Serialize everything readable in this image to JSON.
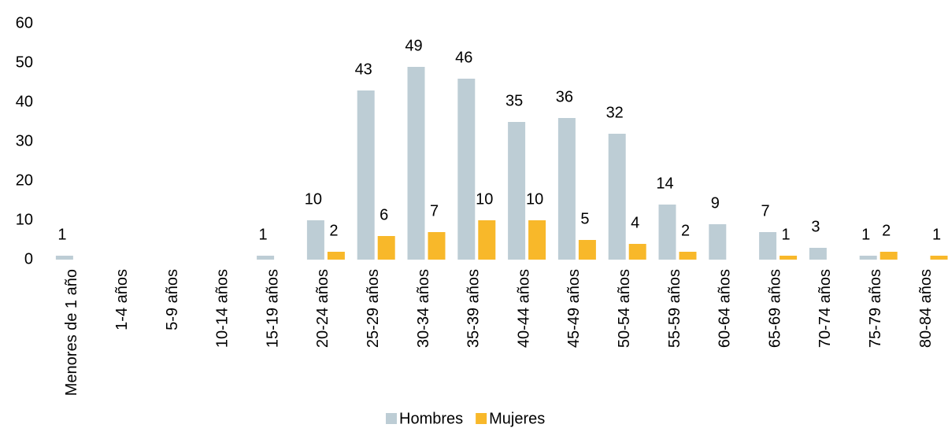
{
  "chart_data": {
    "type": "bar",
    "categories": [
      "Menores de 1 año",
      "1-4 años",
      "5-9 años",
      "10-14 años",
      "15-19 años",
      "20-24 años",
      "25-29 años",
      "30-34 años",
      "35-39 años",
      "40-44 años",
      "45-49 años",
      "50-54 años",
      "55-59 años",
      "60-64 años",
      "65-69 años",
      "70-74 años",
      "75-79 años",
      "80-84 años"
    ],
    "series": [
      {
        "name": "Hombres",
        "color": "#bdcdd5",
        "values": [
          1,
          null,
          null,
          null,
          1,
          10,
          43,
          49,
          46,
          35,
          36,
          32,
          14,
          9,
          7,
          3,
          1,
          null
        ]
      },
      {
        "name": "Mujeres",
        "color": "#f8b82a",
        "values": [
          null,
          null,
          null,
          null,
          null,
          2,
          6,
          7,
          10,
          10,
          5,
          4,
          2,
          null,
          1,
          null,
          2,
          1
        ]
      }
    ],
    "ylim": [
      0,
      60
    ],
    "yticks": [
      0,
      10,
      20,
      30,
      40,
      50,
      60
    ],
    "grid": false,
    "legend": "bottom"
  }
}
